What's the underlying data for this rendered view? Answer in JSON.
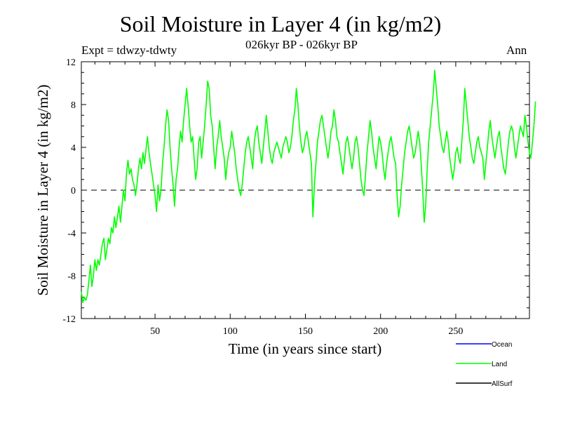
{
  "header": {
    "title": "Soil Moisture in Layer 4 (in kg/m2)",
    "experiment": "Expt = tdwzy-tdwty",
    "period": "026kyr BP - 026kyr BP",
    "season": "Ann"
  },
  "chart_data": {
    "type": "line",
    "title": "Soil Moisture in Layer 4 (in kg/m2)",
    "xlabel": "Time (in years since start)",
    "ylabel": "Soil Moisture in Layer 4 (in kg/m2)",
    "xlim": [
      1,
      299
    ],
    "ylim": [
      -12,
      12
    ],
    "xticks": [
      50,
      100,
      150,
      200,
      250
    ],
    "xtick_labels": [
      "50",
      "100",
      "150",
      "200",
      "250"
    ],
    "yticks": [
      -12,
      -8,
      -4,
      0,
      4,
      8,
      12
    ],
    "ytick_labels": [
      "-12",
      "-8",
      "-4",
      "0",
      "4",
      "8",
      "12"
    ],
    "zero_line": "dashed",
    "grid": false,
    "legend_position": "bottom-right",
    "series": [
      {
        "name": "Ocean",
        "color": "#0000ff",
        "values": []
      },
      {
        "name": "Land",
        "color": "#00ff00",
        "x_start": 1,
        "x_step": 1,
        "values": [
          -9.5,
          -10.5,
          -10.0,
          -10.3,
          -9.8,
          -8.5,
          -7.0,
          -9.0,
          -8.0,
          -6.5,
          -7.5,
          -6.5,
          -7.0,
          -6.0,
          -5.0,
          -4.5,
          -6.5,
          -5.5,
          -4.5,
          -5.0,
          -3.5,
          -4.0,
          -2.5,
          -3.5,
          -2.5,
          -1.5,
          -3.0,
          -1.5,
          0.0,
          -1.0,
          1.5,
          2.8,
          1.5,
          2.0,
          1.0,
          0.5,
          -0.5,
          0.5,
          2.0,
          3.0,
          2.0,
          3.5,
          2.5,
          3.8,
          5.0,
          3.5,
          2.5,
          1.5,
          0.5,
          -0.5,
          -2.0,
          0.5,
          -1.0,
          0.0,
          2.5,
          4.0,
          6.0,
          7.5,
          6.5,
          4.0,
          2.0,
          0.5,
          -1.5,
          1.0,
          2.0,
          4.0,
          5.5,
          4.5,
          6.5,
          8.0,
          9.5,
          8.0,
          6.0,
          4.5,
          5.0,
          3.0,
          1.0,
          2.0,
          4.5,
          5.0,
          3.0,
          4.5,
          6.0,
          8.0,
          10.2,
          9.5,
          7.0,
          6.0,
          4.0,
          2.0,
          4.0,
          5.0,
          6.5,
          5.0,
          4.0,
          3.0,
          1.0,
          2.5,
          3.5,
          4.0,
          5.5,
          4.5,
          3.5,
          2.0,
          1.0,
          0.0,
          -0.5,
          0.5,
          2.0,
          3.5,
          4.5,
          5.0,
          4.0,
          3.0,
          2.0,
          4.5,
          5.5,
          6.0,
          4.5,
          3.5,
          2.5,
          4.0,
          5.5,
          7.0,
          5.5,
          4.0,
          3.0,
          2.5,
          3.5,
          4.0,
          4.5,
          4.0,
          3.5,
          3.0,
          4.0,
          4.5,
          5.0,
          4.5,
          3.5,
          4.0,
          5.0,
          6.5,
          7.5,
          9.5,
          8.0,
          6.0,
          4.5,
          3.5,
          4.0,
          5.0,
          5.5,
          4.5,
          3.5,
          2.5,
          -2.5,
          0.5,
          2.5,
          4.5,
          5.5,
          6.5,
          7.0,
          6.0,
          5.0,
          4.0,
          3.0,
          4.0,
          5.5,
          6.0,
          7.5,
          6.5,
          5.0,
          4.5,
          3.5,
          2.5,
          1.5,
          3.0,
          4.5,
          5.0,
          4.0,
          3.0,
          2.0,
          3.0,
          4.5,
          5.0,
          4.0,
          2.5,
          1.0,
          0.0,
          -0.5,
          1.5,
          3.5,
          5.0,
          6.5,
          5.5,
          4.0,
          3.0,
          2.0,
          3.5,
          5.0,
          4.5,
          3.5,
          2.0,
          1.0,
          2.5,
          3.5,
          4.5,
          5.0,
          4.0,
          3.0,
          2.5,
          -0.5,
          -2.5,
          -1.5,
          0.5,
          2.0,
          3.5,
          4.5,
          5.5,
          6.0,
          5.0,
          4.0,
          3.0,
          3.5,
          4.5,
          5.5,
          4.5,
          2.5,
          0.0,
          -3.0,
          -1.5,
          2.0,
          4.5,
          6.0,
          7.5,
          9.0,
          11.2,
          9.5,
          8.0,
          6.0,
          5.0,
          4.0,
          3.5,
          4.5,
          5.5,
          4.5,
          3.0,
          2.0,
          1.0,
          2.0,
          3.5,
          4.0,
          3.0,
          2.5,
          4.5,
          6.5,
          9.5,
          8.0,
          6.5,
          5.0,
          4.0,
          3.0,
          2.5,
          3.5,
          4.5,
          5.0,
          4.0,
          3.5,
          3.0,
          1.0,
          2.5,
          4.0,
          5.5,
          6.5,
          5.0,
          4.0,
          3.0,
          4.0,
          5.0,
          5.5,
          4.0,
          3.0,
          2.0,
          1.5,
          3.0,
          4.5,
          5.5,
          6.0,
          5.5,
          4.0,
          3.0,
          4.0,
          5.0,
          6.0,
          5.5,
          5.0,
          7.0,
          6.0,
          4.5,
          3.5,
          3.0,
          4.5,
          6.0,
          8.3
        ]
      },
      {
        "name": "AllSurf",
        "color": "#000000",
        "values": []
      }
    ]
  }
}
